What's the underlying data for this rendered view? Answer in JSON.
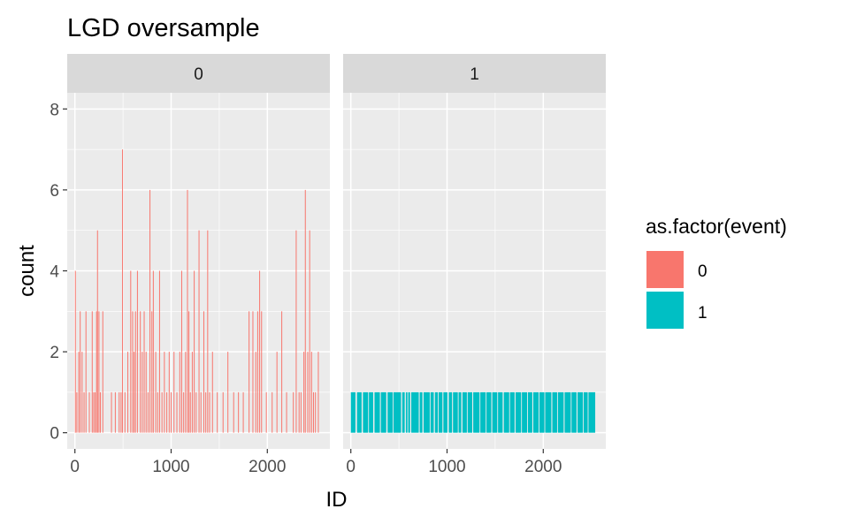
{
  "chart_data": {
    "type": "bar",
    "title": "LGD oversample",
    "xlabel": "ID",
    "ylabel": "count",
    "xlim": [
      -80,
      2650
    ],
    "ylim": [
      -0.4,
      8.4
    ],
    "x_ticks": [
      0,
      1000,
      2000
    ],
    "x_tick_labels": [
      "0",
      "1000",
      "2000"
    ],
    "y_ticks": [
      0,
      2,
      4,
      6,
      8
    ],
    "y_tick_labels": [
      "0",
      "2",
      "4",
      "6",
      "8"
    ],
    "grid": true,
    "legend": {
      "title": "as.factor(event)",
      "position": "right",
      "entries": [
        {
          "label": "0",
          "color": "#F8766D"
        },
        {
          "label": "1",
          "color": "#00BFC4"
        }
      ]
    },
    "panels": [
      {
        "strip_label": "0",
        "event": "0",
        "color": "#F8766D",
        "bars": [
          {
            "x": 5,
            "y": 4
          },
          {
            "x": 20,
            "y": 1
          },
          {
            "x": 40,
            "y": 2
          },
          {
            "x": 55,
            "y": 3
          },
          {
            "x": 75,
            "y": 2
          },
          {
            "x": 95,
            "y": 1
          },
          {
            "x": 115,
            "y": 3
          },
          {
            "x": 150,
            "y": 1
          },
          {
            "x": 180,
            "y": 3
          },
          {
            "x": 195,
            "y": 1
          },
          {
            "x": 210,
            "y": 1
          },
          {
            "x": 225,
            "y": 3
          },
          {
            "x": 235,
            "y": 5
          },
          {
            "x": 250,
            "y": 3
          },
          {
            "x": 265,
            "y": 1
          },
          {
            "x": 290,
            "y": 3
          },
          {
            "x": 380,
            "y": 1
          },
          {
            "x": 420,
            "y": 1
          },
          {
            "x": 460,
            "y": 1
          },
          {
            "x": 480,
            "y": 1
          },
          {
            "x": 495,
            "y": 7
          },
          {
            "x": 520,
            "y": 1
          },
          {
            "x": 550,
            "y": 2
          },
          {
            "x": 580,
            "y": 4
          },
          {
            "x": 600,
            "y": 3
          },
          {
            "x": 615,
            "y": 2
          },
          {
            "x": 630,
            "y": 3
          },
          {
            "x": 650,
            "y": 4
          },
          {
            "x": 680,
            "y": 3
          },
          {
            "x": 700,
            "y": 2
          },
          {
            "x": 720,
            "y": 3
          },
          {
            "x": 740,
            "y": 2
          },
          {
            "x": 760,
            "y": 1
          },
          {
            "x": 780,
            "y": 6
          },
          {
            "x": 800,
            "y": 3
          },
          {
            "x": 815,
            "y": 4
          },
          {
            "x": 840,
            "y": 2
          },
          {
            "x": 860,
            "y": 1
          },
          {
            "x": 880,
            "y": 4
          },
          {
            "x": 905,
            "y": 1
          },
          {
            "x": 930,
            "y": 2
          },
          {
            "x": 955,
            "y": 1
          },
          {
            "x": 980,
            "y": 2
          },
          {
            "x": 1000,
            "y": 1
          },
          {
            "x": 1030,
            "y": 2
          },
          {
            "x": 1060,
            "y": 1
          },
          {
            "x": 1090,
            "y": 2
          },
          {
            "x": 1110,
            "y": 4
          },
          {
            "x": 1130,
            "y": 1
          },
          {
            "x": 1150,
            "y": 2
          },
          {
            "x": 1170,
            "y": 6
          },
          {
            "x": 1185,
            "y": 3
          },
          {
            "x": 1200,
            "y": 1
          },
          {
            "x": 1220,
            "y": 2
          },
          {
            "x": 1240,
            "y": 4
          },
          {
            "x": 1260,
            "y": 1
          },
          {
            "x": 1290,
            "y": 5
          },
          {
            "x": 1310,
            "y": 1
          },
          {
            "x": 1340,
            "y": 3
          },
          {
            "x": 1360,
            "y": 1
          },
          {
            "x": 1380,
            "y": 5
          },
          {
            "x": 1400,
            "y": 1
          },
          {
            "x": 1430,
            "y": 2
          },
          {
            "x": 1480,
            "y": 1
          },
          {
            "x": 1540,
            "y": 1
          },
          {
            "x": 1590,
            "y": 2
          },
          {
            "x": 1650,
            "y": 1
          },
          {
            "x": 1700,
            "y": 1
          },
          {
            "x": 1750,
            "y": 1
          },
          {
            "x": 1810,
            "y": 3
          },
          {
            "x": 1850,
            "y": 3
          },
          {
            "x": 1880,
            "y": 2
          },
          {
            "x": 1900,
            "y": 3
          },
          {
            "x": 1920,
            "y": 4
          },
          {
            "x": 1940,
            "y": 3
          },
          {
            "x": 1990,
            "y": 1
          },
          {
            "x": 2050,
            "y": 1
          },
          {
            "x": 2100,
            "y": 2
          },
          {
            "x": 2150,
            "y": 3
          },
          {
            "x": 2200,
            "y": 1
          },
          {
            "x": 2270,
            "y": 1
          },
          {
            "x": 2300,
            "y": 5
          },
          {
            "x": 2330,
            "y": 1
          },
          {
            "x": 2350,
            "y": 1
          },
          {
            "x": 2380,
            "y": 2
          },
          {
            "x": 2395,
            "y": 6
          },
          {
            "x": 2420,
            "y": 2
          },
          {
            "x": 2440,
            "y": 5
          },
          {
            "x": 2460,
            "y": 2
          },
          {
            "x": 2480,
            "y": 1
          },
          {
            "x": 2500,
            "y": 1
          },
          {
            "x": 2530,
            "y": 2
          }
        ]
      },
      {
        "strip_label": "1",
        "event": "1",
        "color": "#00BFC4",
        "bar_value": 1,
        "x_range": [
          0,
          2540
        ],
        "gaps": [
          [
            48,
            64
          ],
          [
            112,
            126
          ],
          [
            180,
            188
          ],
          [
            232,
            246
          ],
          [
            302,
            312
          ],
          [
            368,
            382
          ],
          [
            436,
            444
          ],
          [
            522,
            534
          ],
          [
            560,
            572
          ],
          [
            588,
            596
          ],
          [
            616,
            628
          ],
          [
            706,
            716
          ],
          [
            744,
            756
          ],
          [
            820,
            828
          ],
          [
            862,
            874
          ],
          [
            904,
            912
          ],
          [
            952,
            962
          ],
          [
            1004,
            1018
          ],
          [
            1052,
            1062
          ],
          [
            1112,
            1120
          ],
          [
            1148,
            1160
          ],
          [
            1206,
            1214
          ],
          [
            1262,
            1272
          ],
          [
            1338,
            1346
          ],
          [
            1402,
            1410
          ],
          [
            1460,
            1470
          ],
          [
            1522,
            1530
          ],
          [
            1578,
            1590
          ],
          [
            1646,
            1654
          ],
          [
            1702,
            1712
          ],
          [
            1770,
            1778
          ],
          [
            1832,
            1840
          ],
          [
            1886,
            1896
          ],
          [
            1952,
            1960
          ],
          [
            2012,
            2020
          ],
          [
            2084,
            2094
          ],
          [
            2144,
            2152
          ],
          [
            2212,
            2222
          ],
          [
            2286,
            2294
          ],
          [
            2346,
            2356
          ],
          [
            2412,
            2420
          ],
          [
            2462,
            2470
          ]
        ]
      }
    ]
  }
}
